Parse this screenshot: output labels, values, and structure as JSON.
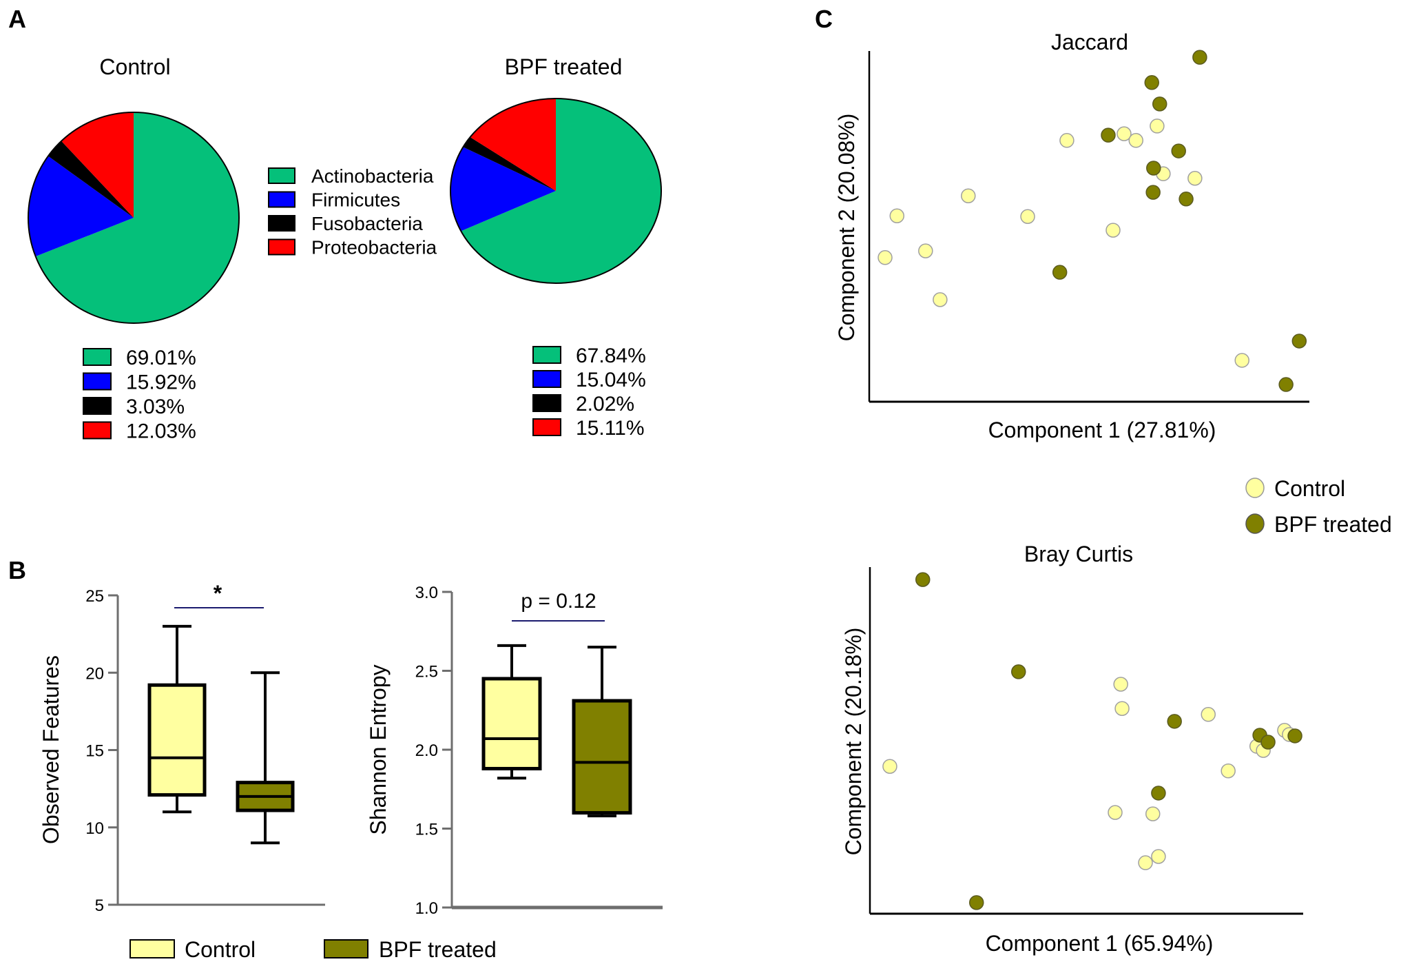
{
  "panels": {
    "a": "A",
    "b": "B",
    "c": "C"
  },
  "chart_data": [
    {
      "id": "pie-control",
      "type": "pie",
      "title": "Control",
      "categories": [
        "Actinobacteria",
        "Firmicutes",
        "Fusobacteria",
        "Proteobacteria"
      ],
      "values": [
        69.01,
        15.92,
        3.03,
        12.03
      ],
      "labels": [
        "69.01%",
        "15.92%",
        "3.03%",
        "12.03%"
      ],
      "colors": [
        "#05c07a",
        "#0000ff",
        "#000000",
        "#ff0000"
      ],
      "start_angle": "12 o'clock, counter-clockwise order reversed (clockwise from top: Actinobacteria first)"
    },
    {
      "id": "pie-bpf",
      "type": "pie",
      "title": "BPF treated",
      "categories": [
        "Actinobacteria",
        "Firmicutes",
        "Fusobacteria",
        "Proteobacteria"
      ],
      "values": [
        67.84,
        15.04,
        2.02,
        15.11
      ],
      "labels": [
        "67.84%",
        "15.04%",
        "2.02%",
        "15.11%"
      ],
      "colors": [
        "#05c07a",
        "#0000ff",
        "#000000",
        "#ff0000"
      ]
    },
    {
      "id": "box-observed",
      "type": "box",
      "ylabel": "Observed Features",
      "ylim": [
        5,
        25
      ],
      "yticks": [
        5,
        10,
        15,
        20,
        25
      ],
      "significance": "*",
      "series": [
        {
          "name": "Control",
          "color": "#ffffa0",
          "min": 11.0,
          "q1": 12.1,
          "median": 14.5,
          "q3": 19.2,
          "max": 23.0
        },
        {
          "name": "BPF treated",
          "color": "#808000",
          "min": 9.0,
          "q1": 11.1,
          "median": 12.0,
          "q3": 12.9,
          "max": 20.0
        }
      ]
    },
    {
      "id": "box-shannon",
      "type": "box",
      "ylabel": "Shannon Entropy",
      "ylim": [
        1.0,
        3.0
      ],
      "yticks": [
        "1.0",
        "1.5",
        "2.0",
        "2.5",
        "3.0"
      ],
      "significance": "p = 0.12",
      "series": [
        {
          "name": "Control",
          "color": "#ffffa0",
          "min": 1.82,
          "q1": 1.88,
          "median": 2.07,
          "q3": 2.45,
          "max": 2.66
        },
        {
          "name": "BPF treated",
          "color": "#808000",
          "min": 1.58,
          "q1": 1.6,
          "median": 1.92,
          "q3": 2.31,
          "max": 2.65
        }
      ]
    },
    {
      "id": "pcoa-jaccard",
      "type": "scatter",
      "title": "Jaccard",
      "xlabel": "Component 1 (27.81%)",
      "ylabel": "Component 2 (20.08%)",
      "units": "normalized (0-1) position within axes; no tick values shown",
      "series": [
        {
          "name": "Control",
          "color": "#ffffa0",
          "points": [
            [
              0.036,
              0.411
            ],
            [
              0.063,
              0.53
            ],
            [
              0.128,
              0.43
            ],
            [
              0.161,
              0.291
            ],
            [
              0.225,
              0.587
            ],
            [
              0.36,
              0.528
            ],
            [
              0.449,
              0.745
            ],
            [
              0.554,
              0.489
            ],
            [
              0.579,
              0.764
            ],
            [
              0.606,
              0.745
            ],
            [
              0.654,
              0.786
            ],
            [
              0.668,
              0.65
            ],
            [
              0.74,
              0.637
            ],
            [
              0.847,
              0.118
            ]
          ]
        },
        {
          "name": "BPF treated",
          "color": "#808000",
          "points": [
            [
              0.751,
              0.982
            ],
            [
              0.642,
              0.91
            ],
            [
              0.66,
              0.849
            ],
            [
              0.543,
              0.76
            ],
            [
              0.703,
              0.715
            ],
            [
              0.646,
              0.666
            ],
            [
              0.645,
              0.597
            ],
            [
              0.72,
              0.578
            ],
            [
              0.433,
              0.369
            ],
            [
              0.977,
              0.173
            ],
            [
              0.947,
              0.049
            ]
          ]
        }
      ]
    },
    {
      "id": "pcoa-bray",
      "type": "scatter",
      "title": "Bray Curtis",
      "xlabel": "Component 1 (65.94%)",
      "ylabel": "Component 2 (20.18%)",
      "units": "normalized (0-1) position within axes; no tick values shown",
      "series": [
        {
          "name": "Control",
          "color": "#ffffa0",
          "points": [
            [
              0.046,
              0.425
            ],
            [
              0.579,
              0.662
            ],
            [
              0.582,
              0.592
            ],
            [
              0.781,
              0.575
            ],
            [
              0.827,
              0.412
            ],
            [
              0.957,
              0.529
            ],
            [
              0.968,
              0.517
            ],
            [
              0.893,
              0.483
            ],
            [
              0.908,
              0.471
            ],
            [
              0.566,
              0.292
            ],
            [
              0.653,
              0.288
            ],
            [
              0.666,
              0.165
            ],
            [
              0.636,
              0.147
            ]
          ]
        },
        {
          "name": "BPF treated",
          "color": "#808000",
          "points": [
            [
              0.122,
              0.964
            ],
            [
              0.343,
              0.698
            ],
            [
              0.703,
              0.555
            ],
            [
              0.981,
              0.513
            ],
            [
              0.9,
              0.515
            ],
            [
              0.919,
              0.495
            ],
            [
              0.666,
              0.348
            ],
            [
              0.246,
              0.032
            ]
          ]
        }
      ]
    }
  ],
  "legends": {
    "phylum": [
      "Actinobacteria",
      "Firmicutes",
      "Fusobacteria",
      "Proteobacteria"
    ],
    "groups": [
      "Control",
      "BPF treated"
    ]
  },
  "colors": {
    "actinobacteria": "#05c07a",
    "firmicutes": "#0000ff",
    "fusobacteria": "#000000",
    "proteobacteria": "#ff0000",
    "control": "#ffffa0",
    "bpf": "#808000",
    "sig_line": "#1a1a6e",
    "axis_gray": "#6e6e6e"
  }
}
